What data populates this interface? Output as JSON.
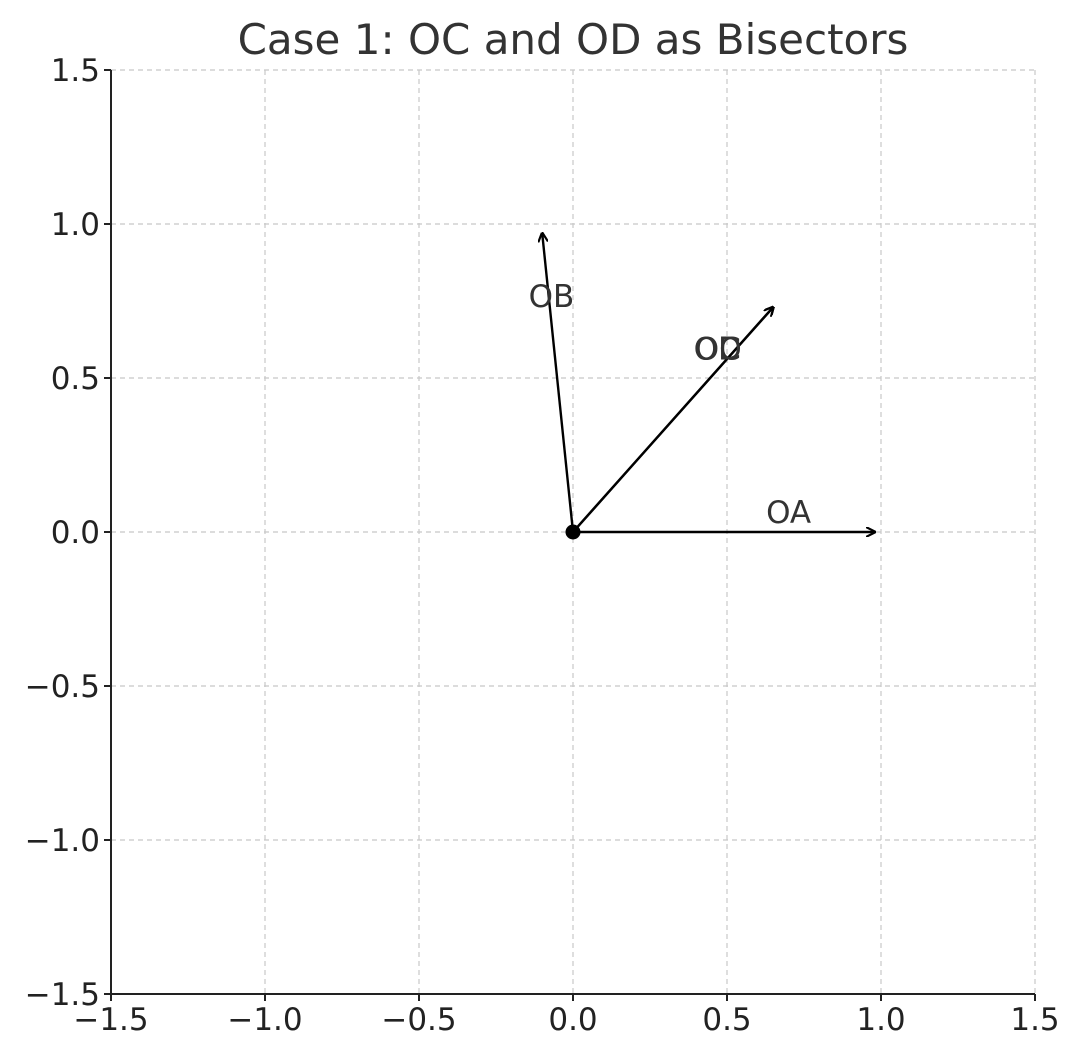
{
  "chart_data": {
    "type": "vector",
    "title": "Case 1: OC and OD as Bisectors",
    "xlim": [
      -1.5,
      1.5
    ],
    "ylim": [
      -1.5,
      1.5
    ],
    "xticks": [
      -1.5,
      -1.0,
      -0.5,
      0.0,
      0.5,
      1.0,
      1.5
    ],
    "yticks": [
      -1.5,
      -1.0,
      -0.5,
      0.0,
      0.5,
      1.0,
      1.5
    ],
    "xtick_labels": [
      "−1.5",
      "−1.0",
      "−0.5",
      "0.0",
      "0.5",
      "1.0",
      "1.5"
    ],
    "ytick_labels": [
      "−1.5",
      "−1.0",
      "−0.5",
      "0.0",
      "0.5",
      "1.0",
      "1.5"
    ],
    "grid": true,
    "origin": {
      "x": 0.0,
      "y": 0.0
    },
    "vectors": [
      {
        "label": "OA",
        "x": 0.98,
        "y": 0.0,
        "label_at": {
          "x": 0.7,
          "y": 0.03
        }
      },
      {
        "label": "OB",
        "x": -0.1,
        "y": 0.97,
        "label_at": {
          "x": -0.07,
          "y": 0.73
        }
      },
      {
        "label": "OC",
        "x": 0.65,
        "y": 0.73,
        "label_at": {
          "x": 0.47,
          "y": 0.56
        }
      },
      {
        "label": "OD",
        "x": 0.65,
        "y": 0.73,
        "label_at": {
          "x": 0.47,
          "y": 0.56
        }
      }
    ],
    "colors": {
      "vector": "#000000",
      "grid": "#c8c8c8",
      "text": "#333333"
    }
  }
}
